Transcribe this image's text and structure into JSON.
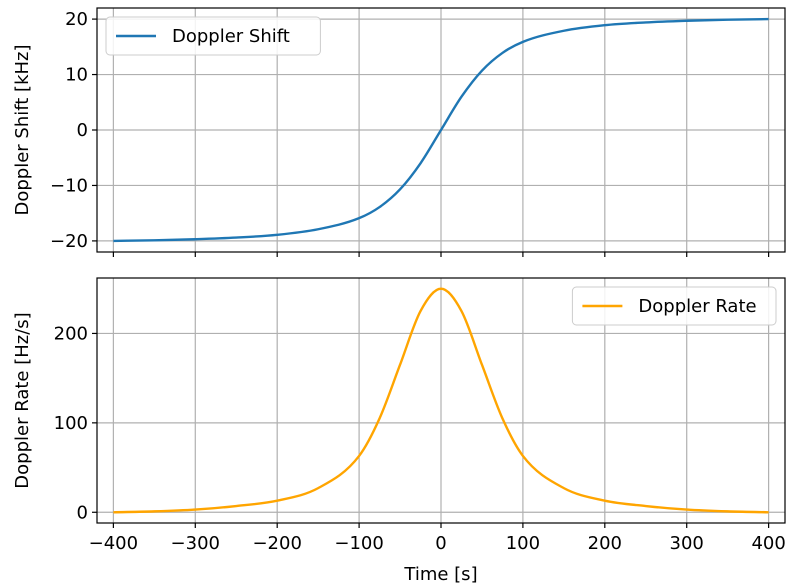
{
  "chart_data": [
    {
      "type": "line",
      "xlabel": "",
      "ylabel": "Doppler Shift [kHz]",
      "xlim": [
        -420,
        420
      ],
      "ylim": [
        -22,
        22
      ],
      "xticks": [
        -400,
        -300,
        -200,
        -100,
        0,
        100,
        200,
        300,
        400
      ],
      "yticks": [
        -20,
        -10,
        0,
        10,
        20
      ],
      "ytick_labels": [
        "−20",
        "−10",
        "0",
        "10",
        "20"
      ],
      "show_x_tick_labels": false,
      "grid": true,
      "legend_position": "upper-left",
      "series": [
        {
          "name": "Doppler Shift",
          "color": "#1f77b4",
          "x": [
            -400,
            -350,
            -300,
            -250,
            -200,
            -150,
            -100,
            -75,
            -50,
            -25,
            0,
            25,
            50,
            75,
            100,
            150,
            200,
            250,
            300,
            350,
            400
          ],
          "y": [
            -20,
            -19.9,
            -19.7,
            -19.4,
            -18.9,
            -17.9,
            -15.9,
            -13.9,
            -10.7,
            -6.0,
            0,
            6.0,
            10.7,
            13.9,
            15.9,
            17.9,
            18.9,
            19.4,
            19.7,
            19.9,
            20
          ]
        }
      ]
    },
    {
      "type": "line",
      "xlabel": "Time [s]",
      "ylabel": "Doppler Rate [Hz/s]",
      "xlim": [
        -420,
        420
      ],
      "ylim": [
        -12,
        262
      ],
      "xticks": [
        -400,
        -300,
        -200,
        -100,
        0,
        100,
        200,
        300,
        400
      ],
      "xtick_labels": [
        "−400",
        "−300",
        "−200",
        "−100",
        "0",
        "100",
        "200",
        "300",
        "400"
      ],
      "yticks": [
        0,
        100,
        200
      ],
      "ytick_labels": [
        "0",
        "100",
        "200"
      ],
      "show_x_tick_labels": true,
      "grid": true,
      "legend_position": "upper-right",
      "series": [
        {
          "name": "Doppler Rate",
          "color": "#ffa500",
          "x": [
            -400,
            -350,
            -300,
            -250,
            -200,
            -150,
            -100,
            -75,
            -50,
            -25,
            0,
            25,
            50,
            75,
            100,
            150,
            200,
            250,
            300,
            350,
            400
          ],
          "y": [
            0,
            1,
            3,
            7,
            13,
            27,
            63,
            105,
            165,
            225,
            250,
            225,
            165,
            105,
            63,
            27,
            13,
            7,
            3,
            1,
            0
          ]
        }
      ]
    }
  ]
}
